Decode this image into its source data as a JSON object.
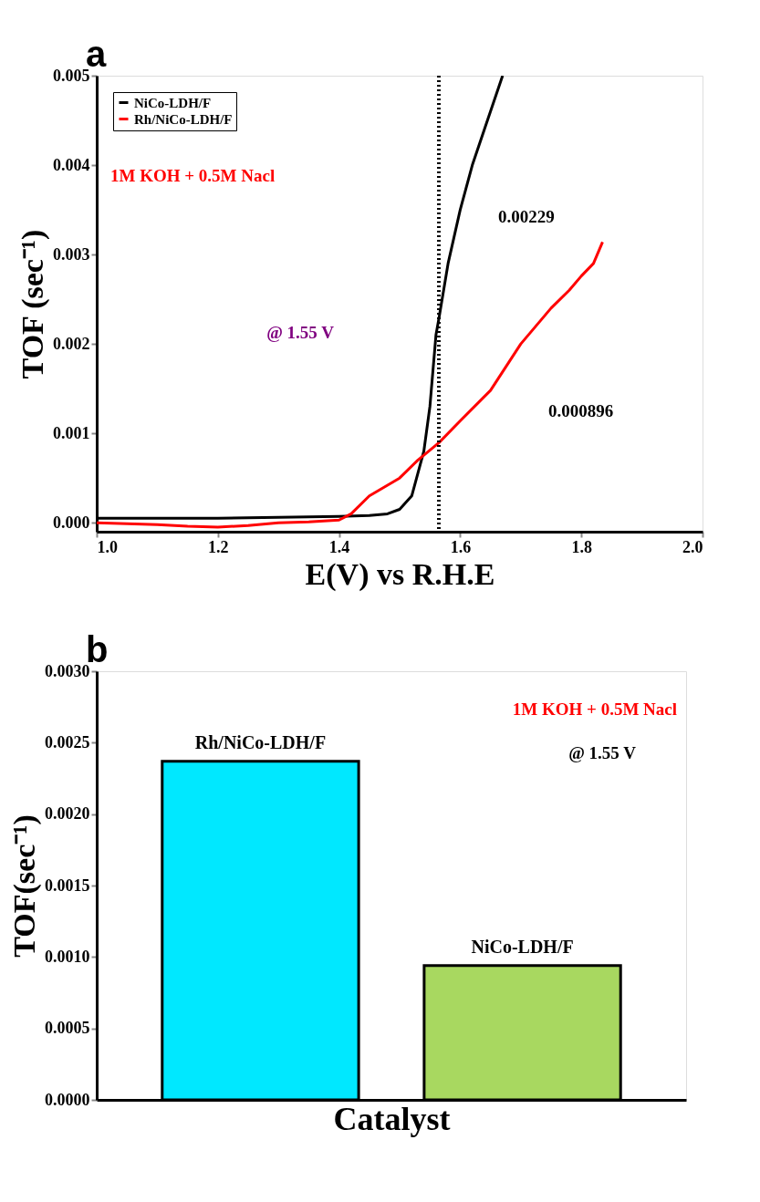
{
  "chart_data": [
    {
      "type": "line",
      "xlabel": "E(V) vs R.H.E",
      "ylabel": "TOF (sec⁻¹)",
      "xlim": [
        1.0,
        2.0
      ],
      "xticks": [
        {
          "value": 1,
          "label": "1.0"
        },
        1.2,
        1.4,
        1.6,
        1.8,
        {
          "value": 2,
          "label": "2.0"
        }
      ],
      "ylim": [
        -0.0001,
        0.005
      ],
      "yticks": [
        {
          "value": 0,
          "label": "0.000"
        },
        0.001,
        0.002,
        0.003,
        0.004,
        0.005
      ],
      "series": [
        {
          "name": "NiCo-LDH/F",
          "color": "#000000",
          "x": [
            1.0,
            1.1,
            1.2,
            1.3,
            1.4,
            1.45,
            1.48,
            1.5,
            1.52,
            1.54,
            1.55,
            1.56,
            1.565,
            1.58,
            1.6,
            1.62,
            1.64,
            1.67
          ],
          "values": [
            5e-05,
            5e-05,
            5e-05,
            6e-05,
            7e-05,
            8e-05,
            0.0001,
            0.00015,
            0.0003,
            0.0008,
            0.0013,
            0.0021,
            0.00229,
            0.0029,
            0.0035,
            0.004,
            0.0044,
            0.005
          ]
        },
        {
          "name": "Rh/NiCo-LDH/F",
          "color": "#ff0000",
          "x": [
            1.0,
            1.1,
            1.15,
            1.2,
            1.25,
            1.3,
            1.35,
            1.4,
            1.42,
            1.45,
            1.5,
            1.53,
            1.565,
            1.6,
            1.65,
            1.7,
            1.75,
            1.78,
            1.8,
            1.82,
            1.835
          ],
          "values": [
            0.0,
            -2e-05,
            -4e-05,
            -5e-05,
            -3e-05,
            0.0,
            1e-05,
            3e-05,
            0.0001,
            0.0003,
            0.0005,
            0.0007,
            0.000896,
            0.00114,
            0.00148,
            0.002,
            0.0024,
            0.0026,
            0.00276,
            0.0029,
            0.00314
          ]
        }
      ],
      "ref_lines": [
        {
          "axis": "x",
          "value": 1.565,
          "line_style": "dotted",
          "color": "#000000"
        }
      ],
      "annotations": [
        "a",
        "1M KOH + 0.5M Nacl",
        "@ 1.55 V",
        "0.00229",
        "0.000896"
      ],
      "legend": "top left",
      "grid": false,
      "marker": "none",
      "line_style": "solid"
    },
    {
      "type": "bar",
      "xlabel": "Catalyst",
      "ylabel": "TOF(sec⁻¹)",
      "categories": [
        "Rh/NiCo-LDH/F",
        "NiCo-LDH/F"
      ],
      "values": [
        0.00237,
        0.00094
      ],
      "colors": [
        "#00e8ff",
        "#a8d860"
      ],
      "ylim": [
        0,
        0.003
      ],
      "yticks": [
        {
          "value": 0,
          "label": "0.0000"
        },
        0.0005,
        {
          "value": 0.001,
          "label": "0.0010"
        },
        0.0015,
        {
          "value": 0.002,
          "label": "0.0020"
        },
        0.0025,
        {
          "value": 0.003,
          "label": "0.0030"
        }
      ],
      "annotations": [
        "b",
        "1M KOH + 0.5M Nacl",
        "@ 1.55 V"
      ],
      "grid": false
    }
  ]
}
